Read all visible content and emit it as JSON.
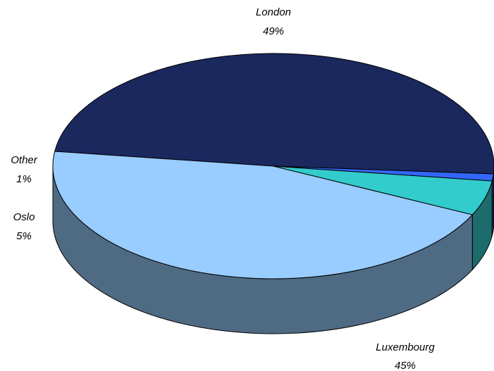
{
  "chart_data": {
    "type": "pie",
    "subtype": "3d",
    "title": "",
    "slices": [
      {
        "label": "London",
        "value": 49,
        "display": "49%",
        "color": "#1b285e",
        "side_color": "#121c44"
      },
      {
        "label": "Luxembourg",
        "value": 45,
        "display": "45%",
        "color": "#99ccff",
        "side_color": "#4f6a83"
      },
      {
        "label": "Oslo",
        "value": 5,
        "display": "5%",
        "color": "#33cccc",
        "side_color": "#1e6b6b"
      },
      {
        "label": "Other",
        "value": 1,
        "display": "1%",
        "color": "#3366ff",
        "side_color": "#1f3f99"
      }
    ],
    "legend": "none",
    "labels": "outside-category-and-percent"
  }
}
